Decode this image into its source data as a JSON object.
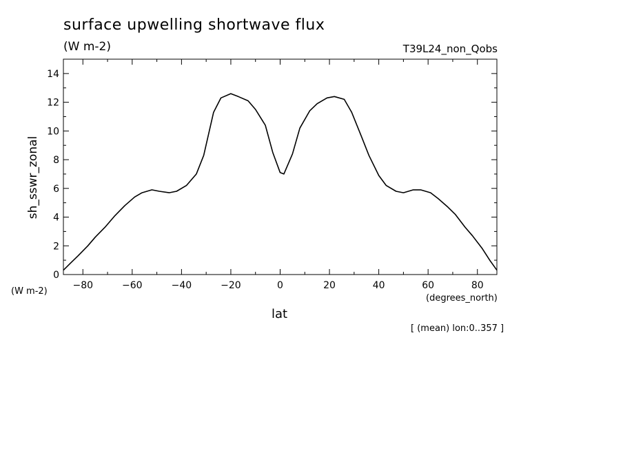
{
  "chart_data": {
    "type": "line",
    "title": "surface upwelling shortwave flux",
    "units": "(W m-2)",
    "dataset": "T39L24_non_Qobs",
    "ylabel": "sh_sswr_zonal",
    "yunits": "(W m-2)",
    "xlabel": "lat",
    "xunits": "(degrees_north)",
    "footnote": "[ (mean) lon:0..357 ]",
    "xlim": [
      -87.9,
      87.9
    ],
    "ylim": [
      0,
      15
    ],
    "xticks": [
      -80,
      -60,
      -40,
      -20,
      0,
      20,
      40,
      60,
      80
    ],
    "yticks": [
      0,
      2,
      4,
      6,
      8,
      10,
      12,
      14
    ],
    "grid": false,
    "series": [
      {
        "x": [
          -87.9,
          -85,
          -82,
          -78,
          -75,
          -71,
          -67,
          -63,
          -59,
          -56,
          -52,
          -49,
          -45,
          -42,
          -38,
          -34,
          -31,
          -27,
          -24,
          -20,
          -17,
          -13,
          -10,
          -6,
          -3,
          0,
          1.5,
          5,
          8,
          12,
          15,
          19,
          22,
          26,
          29,
          33,
          36,
          40,
          43,
          47,
          50,
          54,
          57,
          61,
          64,
          68,
          71,
          75,
          78,
          82,
          85,
          87.9
        ],
        "y": [
          0.3,
          0.8,
          1.3,
          2.0,
          2.6,
          3.3,
          4.1,
          4.8,
          5.4,
          5.7,
          5.9,
          5.8,
          5.7,
          5.8,
          6.2,
          7.0,
          8.3,
          11.3,
          12.3,
          12.6,
          12.4,
          12.1,
          11.5,
          10.4,
          8.5,
          7.1,
          7.0,
          8.4,
          10.2,
          11.4,
          11.9,
          12.3,
          12.4,
          12.2,
          11.3,
          9.6,
          8.3,
          6.9,
          6.2,
          5.8,
          5.7,
          5.9,
          5.9,
          5.7,
          5.3,
          4.7,
          4.2,
          3.3,
          2.7,
          1.8,
          1.0,
          0.3
        ]
      }
    ]
  }
}
